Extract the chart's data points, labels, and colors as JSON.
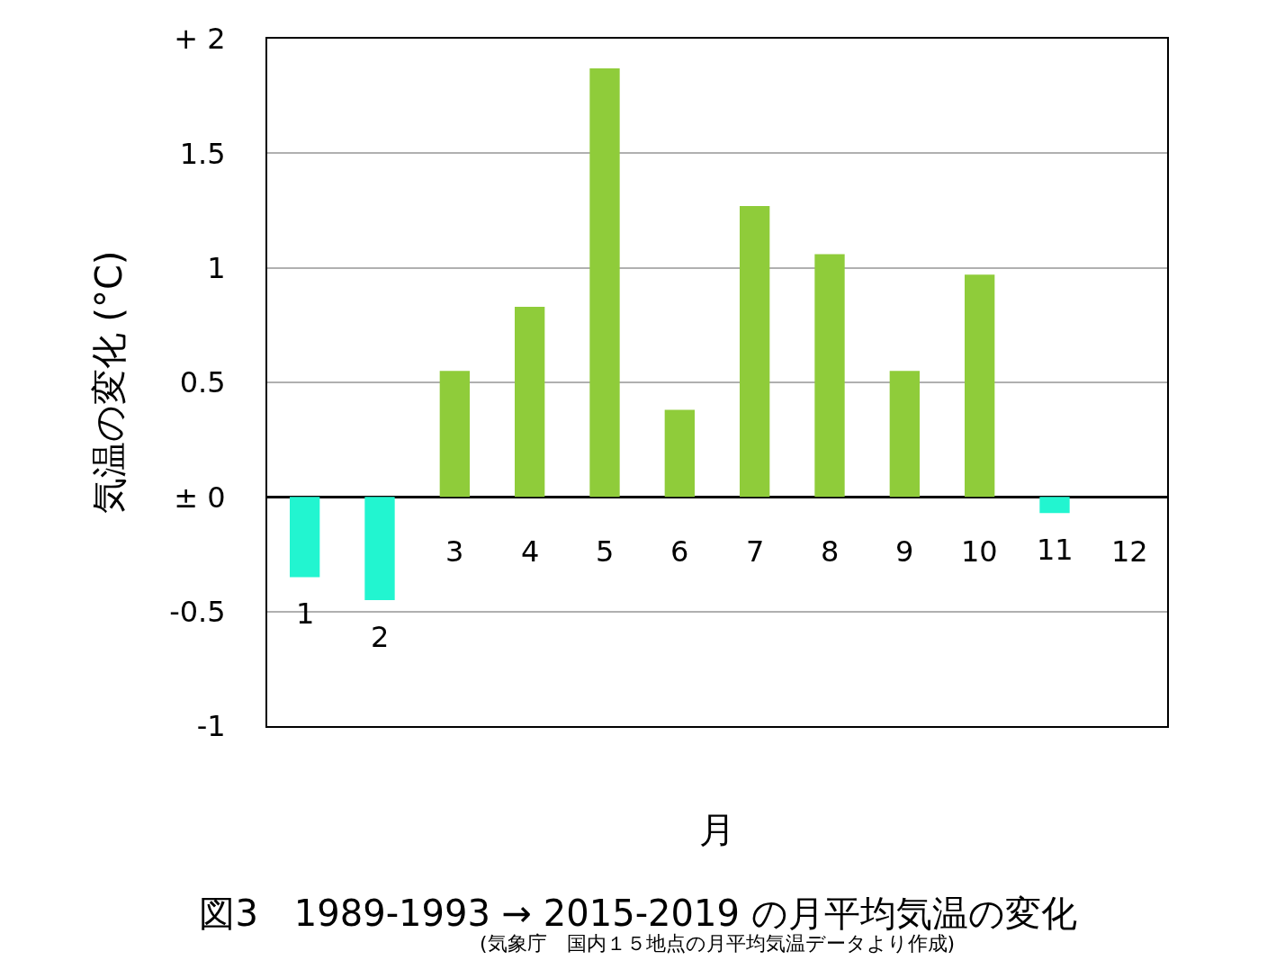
{
  "chart_data": {
    "type": "bar",
    "title": "図3　1989-1993 → 2015-2019 の月平均気温の変化",
    "subtitle": "(気象庁　国内１５地点の月平均気温データより作成)",
    "xlabel": "月",
    "ylabel": "気温の変化 (°C)",
    "categories": [
      "1",
      "2",
      "3",
      "4",
      "5",
      "6",
      "7",
      "8",
      "9",
      "10",
      "11",
      "12"
    ],
    "values": [
      -0.35,
      -0.45,
      0.55,
      0.83,
      1.87,
      0.38,
      1.27,
      1.06,
      0.55,
      0.97,
      -0.07,
      0
    ],
    "colors": [
      "#22f5d0",
      "#22f5d0",
      "#8fcc3a",
      "#8fcc3a",
      "#8fcc3a",
      "#8fcc3a",
      "#8fcc3a",
      "#8fcc3a",
      "#8fcc3a",
      "#8fcc3a",
      "#22f5d0",
      "#8fcc3a"
    ],
    "ylim": [
      -1,
      2
    ],
    "yticks": [
      {
        "value": 2,
        "label": "+ 2"
      },
      1.5,
      1,
      0.5,
      {
        "value": 0,
        "label": "± 0"
      },
      -0.5,
      -1
    ],
    "grid": "y",
    "legend": false
  }
}
